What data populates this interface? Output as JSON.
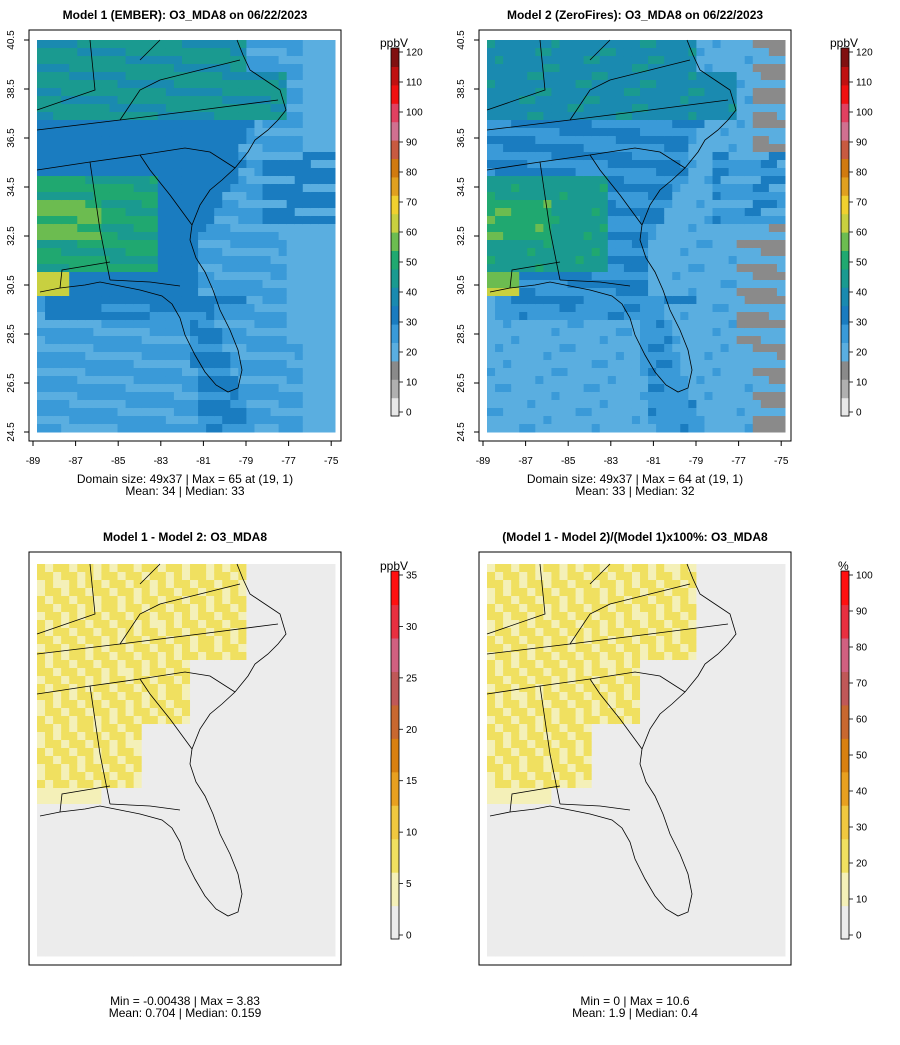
{
  "panels": [
    {
      "title": "Model 1 (EMBER): O3_MDA8 on 06/22/2023",
      "info_line1": "Domain size: 49x37 | Max = 65 at (19, 1)",
      "info_line2": "Mean: 34 |  Median: 33",
      "unit": "ppbV",
      "scale_ticks": [
        "0",
        "10",
        "20",
        "30",
        "40",
        "50",
        "60",
        "70",
        "80",
        "90",
        "100",
        "110",
        "120"
      ],
      "x_ticks": [
        "-89",
        "-87",
        "-85",
        "-83",
        "-81",
        "-79",
        "-77",
        "-75"
      ],
      "y_ticks": [
        "24.5",
        "26.5",
        "28.5",
        "30.5",
        "32.5",
        "34.5",
        "36.5",
        "38.5",
        "40.5"
      ]
    },
    {
      "title": "Model 2 (ZeroFires): O3_MDA8 on 06/22/2023",
      "info_line1": "Domain size: 49x37 | Max = 64 at (19, 1)",
      "info_line2": "Mean: 33 |  Median: 32",
      "unit": "ppbV",
      "scale_ticks": [
        "0",
        "10",
        "20",
        "30",
        "40",
        "50",
        "60",
        "70",
        "80",
        "90",
        "100",
        "110",
        "120"
      ],
      "x_ticks": [
        "-89",
        "-87",
        "-85",
        "-83",
        "-81",
        "-79",
        "-77",
        "-75"
      ],
      "y_ticks": [
        "24.5",
        "26.5",
        "28.5",
        "30.5",
        "32.5",
        "34.5",
        "36.5",
        "38.5",
        "40.5"
      ]
    },
    {
      "title": "Model 1 - Model 2: O3_MDA8",
      "info_line1": "Min = -0.00438 | Max = 3.83",
      "info_line2": "Mean: 0.704 |  Median: 0.159",
      "unit": "ppbV",
      "scale_ticks": [
        "0",
        "5",
        "10",
        "15",
        "20",
        "25",
        "30",
        "35"
      ]
    },
    {
      "title": "(Model 1 - Model 2)/(Model 1)x100%: O3_MDA8",
      "info_line1": "Min = 0 | Max = 10.6",
      "info_line2": "Mean: 1.9 |  Median: 0.4",
      "unit": "%",
      "scale_ticks": [
        "0",
        "10",
        "20",
        "30",
        "40",
        "50",
        "60",
        "70",
        "80",
        "90",
        "100"
      ]
    }
  ],
  "colors": {
    "concentration_scale": [
      "#e8e8e8",
      "#b0b0b0",
      "#8a8a8a",
      "#5aaee0",
      "#3a9ad8",
      "#1a7cc0",
      "#1a8ab0",
      "#1a9a90",
      "#20a870",
      "#6cbc50",
      "#c8d040",
      "#f0d030",
      "#e0a020",
      "#d07a10",
      "#c85a40",
      "#d07090",
      "#e04060",
      "#f01010",
      "#c01010",
      "#801010"
    ],
    "difference_scale": [
      "#ececec",
      "#f4f0b8",
      "#f0e060",
      "#f0c840",
      "#e8a020",
      "#d88010",
      "#c86830",
      "#c05858",
      "#d06080",
      "#e83040",
      "#ff1010"
    ],
    "coastline": "#000000"
  }
}
